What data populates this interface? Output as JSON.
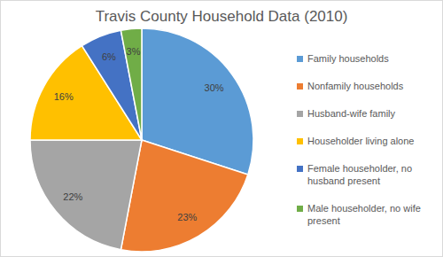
{
  "chart_data": {
    "type": "pie",
    "title": "Travis County Household Data (2010)",
    "categories": [
      "Family households",
      "Nonfamily households",
      "Husband-wife family",
      "Householder living alone",
      "Female householder, no husband present",
      "Male householder, no wife present"
    ],
    "values": [
      30,
      23,
      22,
      16,
      6,
      3
    ],
    "value_labels": [
      "30%",
      "23%",
      "22%",
      "16%",
      "6%",
      "3%"
    ],
    "colors": [
      "#5b9bd5",
      "#ed7d31",
      "#a5a5a5",
      "#ffc000",
      "#4472c4",
      "#70ad47"
    ],
    "data_labels": true,
    "legend": "right"
  }
}
